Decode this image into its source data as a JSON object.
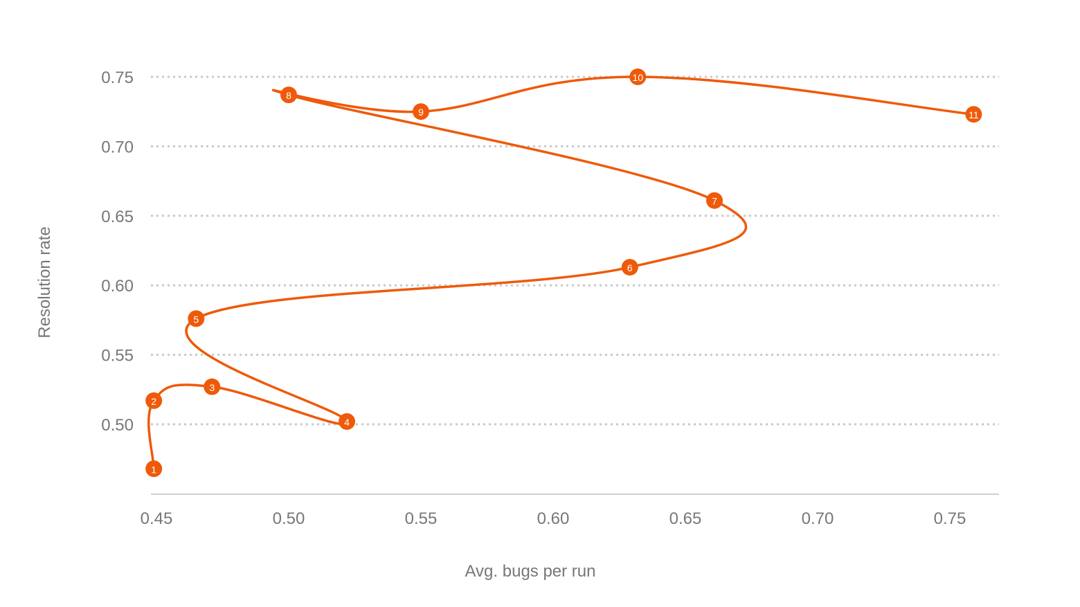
{
  "chart_data": {
    "type": "line",
    "title": "",
    "xlabel": "Avg. bugs per run",
    "ylabel": "Resolution rate",
    "xlim": [
      0.45,
      0.77
    ],
    "ylim": [
      0.45,
      0.76
    ],
    "x_ticks": [
      "0.45",
      "0.50",
      "0.55",
      "0.60",
      "0.65",
      "0.70",
      "0.75"
    ],
    "y_ticks": [
      "0.50",
      "0.55",
      "0.60",
      "0.65",
      "0.70",
      "0.75"
    ],
    "grid": "horizontal dotted",
    "color": "#EE5A0A",
    "points": [
      {
        "label": "1",
        "x": 0.449,
        "y": 0.468
      },
      {
        "label": "2",
        "x": 0.449,
        "y": 0.517
      },
      {
        "label": "3",
        "x": 0.471,
        "y": 0.527
      },
      {
        "label": "4",
        "x": 0.522,
        "y": 0.502
      },
      {
        "label": "5",
        "x": 0.465,
        "y": 0.576
      },
      {
        "label": "6",
        "x": 0.629,
        "y": 0.613
      },
      {
        "label": "7",
        "x": 0.661,
        "y": 0.661
      },
      {
        "label": "8",
        "x": 0.5,
        "y": 0.737
      },
      {
        "label": "9",
        "x": 0.55,
        "y": 0.725
      },
      {
        "label": "10",
        "x": 0.632,
        "y": 0.75
      },
      {
        "label": "11",
        "x": 0.759,
        "y": 0.723
      }
    ]
  }
}
